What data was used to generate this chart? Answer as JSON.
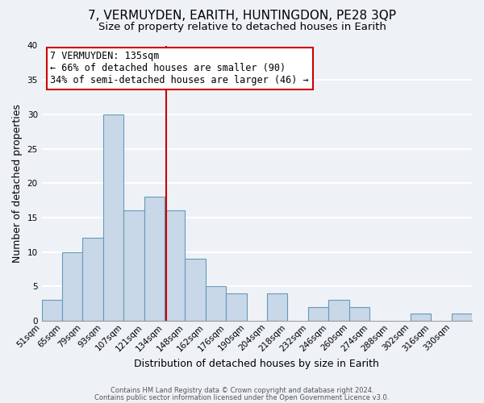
{
  "title": "7, VERMUYDEN, EARITH, HUNTINGDON, PE28 3QP",
  "subtitle": "Size of property relative to detached houses in Earith",
  "xlabel": "Distribution of detached houses by size in Earith",
  "ylabel": "Number of detached properties",
  "bin_labels": [
    "51sqm",
    "65sqm",
    "79sqm",
    "93sqm",
    "107sqm",
    "121sqm",
    "134sqm",
    "148sqm",
    "162sqm",
    "176sqm",
    "190sqm",
    "204sqm",
    "218sqm",
    "232sqm",
    "246sqm",
    "260sqm",
    "274sqm",
    "288sqm",
    "302sqm",
    "316sqm",
    "330sqm"
  ],
  "bar_heights": [
    3,
    10,
    12,
    30,
    16,
    18,
    16,
    9,
    5,
    4,
    0,
    4,
    0,
    2,
    3,
    2,
    0,
    0,
    1,
    0,
    1
  ],
  "bar_color": "#c8d8e8",
  "bar_edge_color": "#6699bb",
  "vline_color": "#cc0000",
  "vline_x_index": 6.07,
  "annotation_text": "7 VERMUYDEN: 135sqm\n← 66% of detached houses are smaller (90)\n34% of semi-detached houses are larger (46) →",
  "annotation_box_color": "#ffffff",
  "annotation_box_edge_color": "#cc0000",
  "ylim": [
    0,
    40
  ],
  "yticks": [
    0,
    5,
    10,
    15,
    20,
    25,
    30,
    35,
    40
  ],
  "footer1": "Contains HM Land Registry data © Crown copyright and database right 2024.",
  "footer2": "Contains public sector information licensed under the Open Government Licence v3.0.",
  "bg_color": "#eef2f7",
  "plot_bg_color": "#eef2f7",
  "grid_color": "#ffffff",
  "title_fontsize": 11,
  "subtitle_fontsize": 9.5,
  "axis_label_fontsize": 9,
  "tick_fontsize": 7.5,
  "annotation_fontsize": 8.5,
  "footer_fontsize": 6.0
}
